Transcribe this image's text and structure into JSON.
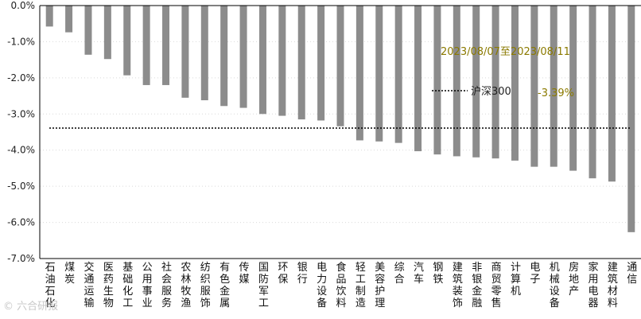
{
  "chart_data": {
    "type": "bar",
    "categories": [
      "石油石化",
      "煤炭",
      "交通运输",
      "医药生物",
      "基础化工",
      "公用事业",
      "社会服务",
      "农林牧渔",
      "纺织服饰",
      "有色金属",
      "传媒",
      "国防军工",
      "环保",
      "银行",
      "电力设备",
      "食品饮料",
      "轻工制造",
      "美容护理",
      "综合",
      "汽车",
      "钢铁",
      "建筑装饰",
      "非银金融",
      "商贸零售",
      "计算机",
      "电子",
      "机械设备",
      "房地产",
      "家用电器",
      "建筑材料",
      "通信"
    ],
    "series": [
      {
        "values": [
          -0.58,
          -0.74,
          -1.36,
          -1.48,
          -1.93,
          -2.2,
          -2.2,
          -2.55,
          -2.62,
          -2.78,
          -2.83,
          -3.0,
          -3.05,
          -3.15,
          -3.18,
          -3.34,
          -3.73,
          -3.76,
          -3.8,
          -4.03,
          -4.12,
          -4.17,
          -4.2,
          -4.23,
          -4.29,
          -4.46,
          -4.46,
          -4.57,
          -4.78,
          -4.87,
          -6.27
        ],
        "color": "#8c8c8c"
      }
    ],
    "reference_line": {
      "name": "沪深300",
      "value": -3.39,
      "style": "dotted",
      "color": "#000000"
    },
    "annotation": {
      "period": "2023/08/07至2023/08/11",
      "legend_value": "-3.39%"
    },
    "ylim": [
      -7,
      0
    ],
    "yticks": [
      "0.0%",
      "-1.0%",
      "-2.0%",
      "-3.0%",
      "-4.0%",
      "-5.0%",
      "-6.0%",
      "-7.0%"
    ],
    "ytick_values": [
      0,
      -1,
      -2,
      -3,
      -4,
      -5,
      -6,
      -7
    ],
    "grid": "horizontal dotted",
    "legend_position": "top-right"
  },
  "watermark": "© 六合研报"
}
